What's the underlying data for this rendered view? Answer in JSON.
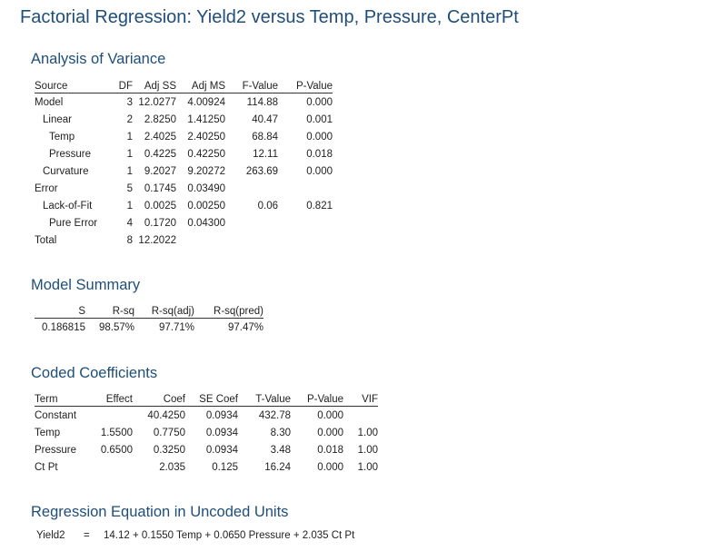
{
  "title": "Factorial Regression: Yield2 versus Temp, Pressure, CenterPt",
  "anova": {
    "heading": "Analysis of Variance",
    "columns": [
      "Source",
      "DF",
      "Adj SS",
      "Adj MS",
      "F-Value",
      "P-Value"
    ],
    "rows": [
      {
        "indent": 0,
        "cells": [
          "Model",
          "3",
          "12.0277",
          "4.00924",
          "114.88",
          "0.000"
        ]
      },
      {
        "indent": 1,
        "cells": [
          "Linear",
          "2",
          "2.8250",
          "1.41250",
          "40.47",
          "0.001"
        ]
      },
      {
        "indent": 2,
        "cells": [
          "Temp",
          "1",
          "2.4025",
          "2.40250",
          "68.84",
          "0.000"
        ]
      },
      {
        "indent": 2,
        "cells": [
          "Pressure",
          "1",
          "0.4225",
          "0.42250",
          "12.11",
          "0.018"
        ]
      },
      {
        "indent": 1,
        "cells": [
          "Curvature",
          "1",
          "9.2027",
          "9.20272",
          "263.69",
          "0.000"
        ]
      },
      {
        "indent": 0,
        "cells": [
          "Error",
          "5",
          "0.1745",
          "0.03490",
          "",
          ""
        ]
      },
      {
        "indent": 1,
        "cells": [
          "Lack-of-Fit",
          "1",
          "0.0025",
          "0.00250",
          "0.06",
          "0.821"
        ]
      },
      {
        "indent": 2,
        "cells": [
          "Pure Error",
          "4",
          "0.1720",
          "0.04300",
          "",
          ""
        ]
      },
      {
        "indent": 0,
        "cells": [
          "Total",
          "8",
          "12.2022",
          "",
          "",
          ""
        ]
      }
    ]
  },
  "model_summary": {
    "heading": "Model Summary",
    "columns": [
      "S",
      "R-sq",
      "R-sq(adj)",
      "R-sq(pred)"
    ],
    "rows": [
      [
        "0.186815",
        "98.57%",
        "97.71%",
        "97.47%"
      ]
    ]
  },
  "coefficients": {
    "heading": "Coded Coefficients",
    "columns": [
      "Term",
      "Effect",
      "Coef",
      "SE Coef",
      "T-Value",
      "P-Value",
      "VIF"
    ],
    "rows": [
      [
        "Constant",
        "",
        "40.4250",
        "0.0934",
        "432.78",
        "0.000",
        ""
      ],
      [
        "Temp",
        "1.5500",
        "0.7750",
        "0.0934",
        "8.30",
        "0.000",
        "1.00"
      ],
      [
        "Pressure",
        "0.6500",
        "0.3250",
        "0.0934",
        "3.48",
        "0.018",
        "1.00"
      ],
      [
        "Ct Pt",
        "",
        "2.035",
        "0.125",
        "16.24",
        "0.000",
        "1.00"
      ]
    ]
  },
  "regression_equation": {
    "heading": "Regression Equation in Uncoded Units",
    "lhs": "Yield2",
    "equals": "=",
    "rhs": "14.12 + 0.1550 Temp + 0.0650 Pressure + 2.035 Ct Pt"
  }
}
